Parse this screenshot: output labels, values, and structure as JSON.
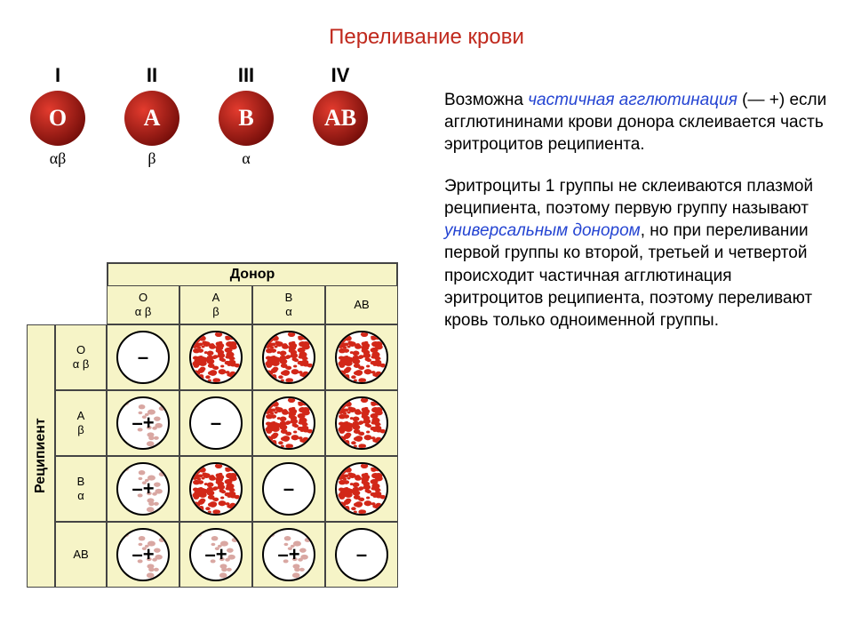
{
  "title": {
    "text": "Переливание крови",
    "color": "#c0291d",
    "fontsize": 24
  },
  "blood_types": {
    "circle_gradient_inner": "#e33b2e",
    "circle_gradient_outer": "#6a0906",
    "letter_color": "#ffffff",
    "letter_fontsize": 26,
    "items": [
      {
        "roman": "I",
        "letter": "O",
        "agglutinins": "αβ"
      },
      {
        "roman": "II",
        "letter": "A",
        "agglutinins": "β"
      },
      {
        "roman": "III",
        "letter": "B",
        "agglutinins": "α"
      },
      {
        "roman": "IV",
        "letter": "AB",
        "agglutinins": ""
      }
    ]
  },
  "table": {
    "donor_label": "Донор",
    "recipient_label": "Реципиент",
    "bg_color": "#f6f4c7",
    "border_color": "#444444",
    "headers": [
      {
        "letter": "O",
        "ab": "α β"
      },
      {
        "letter": "A",
        "ab": "β"
      },
      {
        "letter": "B",
        "ab": "α"
      },
      {
        "letter": "AB",
        "ab": ""
      }
    ],
    "agglutination_color": "#d22718",
    "circle_fill": "#ffffff",
    "circle_border": "#000000",
    "rows": [
      {
        "hdr": {
          "letter": "O",
          "ab": "α β"
        },
        "cells": [
          {
            "mark": "–",
            "agg": "none"
          },
          {
            "mark": "",
            "agg": "full"
          },
          {
            "mark": "",
            "agg": "full"
          },
          {
            "mark": "",
            "agg": "full"
          }
        ]
      },
      {
        "hdr": {
          "letter": "A",
          "ab": "β"
        },
        "cells": [
          {
            "mark": "–+",
            "agg": "partial"
          },
          {
            "mark": "–",
            "agg": "none"
          },
          {
            "mark": "",
            "agg": "full"
          },
          {
            "mark": "",
            "agg": "full"
          }
        ]
      },
      {
        "hdr": {
          "letter": "B",
          "ab": "α"
        },
        "cells": [
          {
            "mark": "–+",
            "agg": "partial"
          },
          {
            "mark": "",
            "agg": "full"
          },
          {
            "mark": "–",
            "agg": "none"
          },
          {
            "mark": "",
            "agg": "full"
          }
        ]
      },
      {
        "hdr": {
          "letter": "AB",
          "ab": ""
        },
        "cells": [
          {
            "mark": "–+",
            "agg": "partial"
          },
          {
            "mark": "–+",
            "agg": "partial"
          },
          {
            "mark": "–+",
            "agg": "partial"
          },
          {
            "mark": "–",
            "agg": "none"
          }
        ]
      }
    ]
  },
  "text": {
    "p1_a": "Возможна ",
    "p1_em": "частичная агглютинация",
    "p1_b": " (— +) если агглютининами крови донора склеивается часть эритроцитов реципиента.",
    "p2_a": "Эритроциты 1 группы не склеиваются плазмой реципиента, поэтому первую группу называют ",
    "p2_em": "универсальным донором",
    "p2_b": ", но при переливании первой группы ко второй, третьей и четвертой происходит частичная агглютинация эритроцитов реципиента, поэтому переливают кровь только одноименной группы.",
    "em_color": "#2444d2"
  }
}
